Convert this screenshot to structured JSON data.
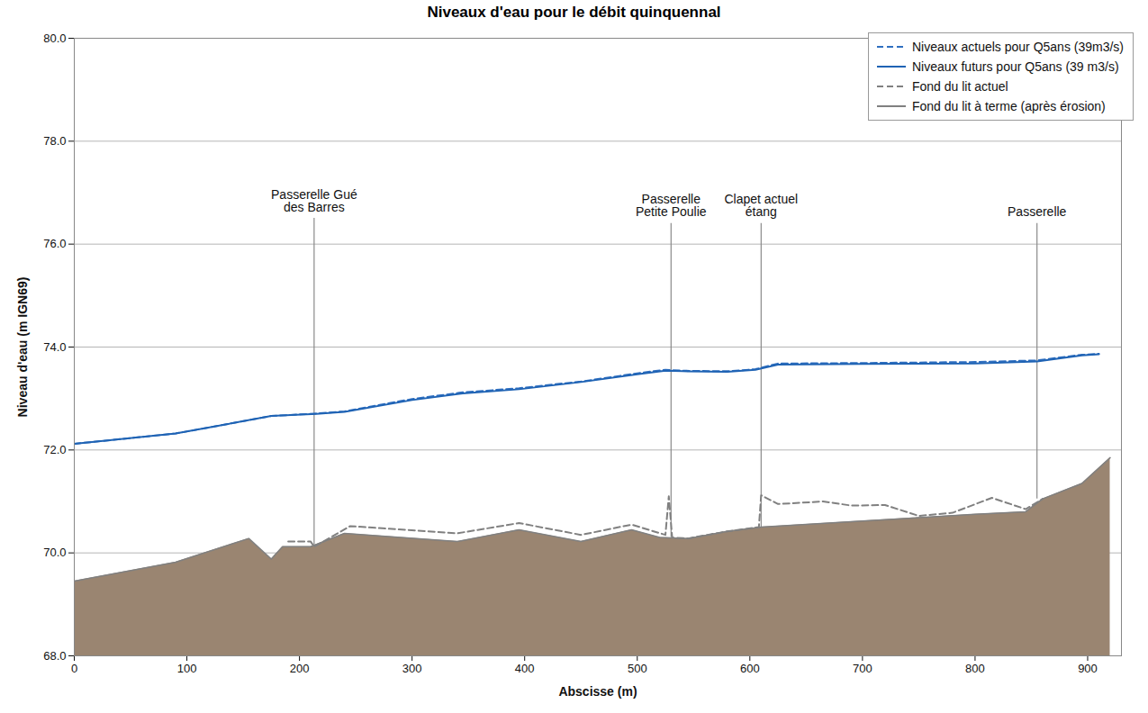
{
  "chart_data": {
    "type": "line",
    "title": "Niveaux d'eau pour le débit quinquennal",
    "x_label": "Abscisse (m)",
    "y_label": "Niveau d'eau (m IGN69)",
    "xlim": [
      0,
      930
    ],
    "xticks": [
      0,
      100,
      200,
      300,
      400,
      500,
      600,
      700,
      800,
      900
    ],
    "ylim": [
      68,
      80
    ],
    "yticks": [
      {
        "value": 68,
        "label": "68.0"
      },
      {
        "value": 70,
        "label": "70.0"
      },
      {
        "value": 72,
        "label": "72.0"
      },
      {
        "value": 74,
        "label": "74.0"
      },
      {
        "value": 76,
        "label": "76.0"
      },
      {
        "value": 78,
        "label": "78.0"
      },
      {
        "value": 80,
        "label": "80.0"
      }
    ],
    "grid": true,
    "legend": "top-right",
    "series": [
      {
        "name": "Niveaux actuels pour Q5ans (39m3/s)",
        "color": "#2f6fc0",
        "line_style": "dashed",
        "type": "line",
        "x": [
          0,
          90,
          175,
          215,
          240,
          300,
          345,
          395,
          450,
          500,
          525,
          540,
          580,
          605,
          625,
          700,
          800,
          855,
          895,
          910
        ],
        "values": [
          72.12,
          72.32,
          72.66,
          72.71,
          72.75,
          72.99,
          73.12,
          73.2,
          73.33,
          73.49,
          73.56,
          73.54,
          73.53,
          73.57,
          73.68,
          73.69,
          73.71,
          73.74,
          73.85,
          73.87
        ]
      },
      {
        "name": "Niveaux futurs pour Q5ans (39 m3/s)",
        "color": "#1f63b4",
        "line_style": "solid",
        "type": "line",
        "x": [
          0,
          90,
          175,
          215,
          240,
          300,
          345,
          395,
          450,
          500,
          525,
          540,
          580,
          605,
          625,
          700,
          800,
          855,
          895,
          910
        ],
        "values": [
          72.12,
          72.32,
          72.66,
          72.7,
          72.74,
          72.97,
          73.1,
          73.18,
          73.32,
          73.47,
          73.54,
          73.53,
          73.52,
          73.56,
          73.66,
          73.67,
          73.68,
          73.72,
          73.84,
          73.86
        ]
      },
      {
        "name": "Fond du lit actuel",
        "color": "#808080",
        "line_style": "dashed",
        "type": "line",
        "x": [
          190,
          210,
          213,
          245,
          340,
          395,
          450,
          495,
          525,
          528,
          531,
          545,
          580,
          608,
          610,
          625,
          665,
          690,
          720,
          750,
          780,
          815,
          845,
          860
        ],
        "values": [
          70.22,
          70.22,
          70.12,
          70.52,
          70.38,
          70.58,
          70.35,
          70.55,
          70.35,
          71.1,
          70.3,
          70.28,
          70.42,
          70.5,
          71.12,
          70.95,
          71.0,
          70.92,
          70.93,
          70.72,
          70.78,
          71.07,
          70.85,
          71.05
        ]
      },
      {
        "name": "Fond du lit à terme (après érosion)",
        "color": "#808080",
        "line_style": "solid",
        "type": "area",
        "x": [
          0,
          90,
          155,
          175,
          185,
          210,
          240,
          340,
          395,
          450,
          495,
          520,
          545,
          580,
          610,
          700,
          800,
          845,
          860,
          895,
          920
        ],
        "values": [
          69.45,
          69.82,
          70.28,
          69.88,
          70.12,
          70.12,
          70.38,
          70.22,
          70.45,
          70.22,
          70.45,
          70.3,
          70.28,
          70.42,
          70.5,
          70.62,
          70.75,
          70.8,
          71.05,
          71.35,
          71.85
        ]
      }
    ],
    "annotations": [
      {
        "lines": [
          "Passerelle Gué",
          "des Barres"
        ],
        "x": 213,
        "y_bottom": 70.12,
        "y_top": 76.5
      },
      {
        "lines": [
          "Passerelle",
          "Petite Poulie"
        ],
        "x": 530,
        "y_bottom": 70.3,
        "y_top": 76.4
      },
      {
        "lines": [
          "Clapet actuel",
          "étang"
        ],
        "x": 610,
        "y_bottom": 70.5,
        "y_top": 76.4
      },
      {
        "lines": [
          "Passerelle"
        ],
        "x": 855,
        "y_bottom": 71.05,
        "y_top": 76.4
      }
    ]
  }
}
